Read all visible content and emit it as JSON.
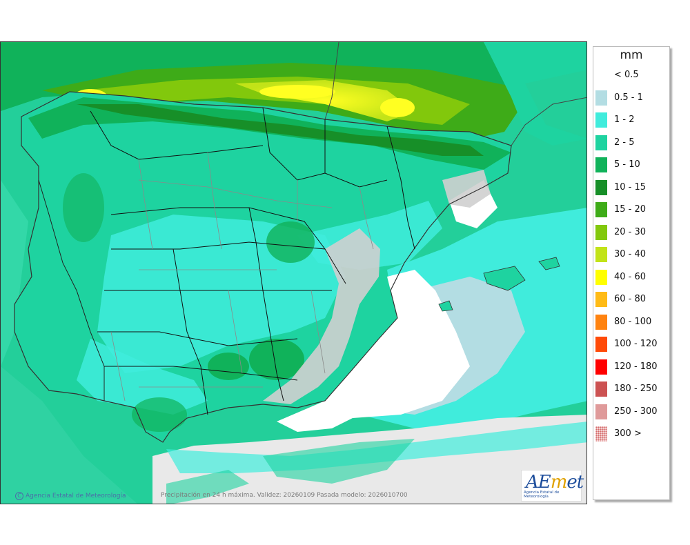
{
  "legend": {
    "unit": "mm",
    "classes": [
      {
        "label": "< 0.5",
        "color": "#ffffff"
      },
      {
        "label": "0.5 - 1",
        "color": "#b3dde3"
      },
      {
        "label": "1 - 2",
        "color": "#40ecdc"
      },
      {
        "label": "2 - 5",
        "color": "#1ed3a0"
      },
      {
        "label": "5 - 10",
        "color": "#10b25a"
      },
      {
        "label": "10 - 15",
        "color": "#178f28"
      },
      {
        "label": "15 - 20",
        "color": "#3eab18"
      },
      {
        "label": "20 - 30",
        "color": "#82c80c"
      },
      {
        "label": "30 - 40",
        "color": "#c2e318"
      },
      {
        "label": "40 - 60",
        "color": "#ffff00"
      },
      {
        "label": "60 - 80",
        "color": "#ffbb16"
      },
      {
        "label": "80 - 100",
        "color": "#ff8310"
      },
      {
        "label": "100 - 120",
        "color": "#ff4a08"
      },
      {
        "label": "120 - 180",
        "color": "#ff0000"
      },
      {
        "label": "180 - 250",
        "color": "#cc5252"
      },
      {
        "label": "250 - 300",
        "color": "#df9a9a"
      },
      {
        "label": "300 >",
        "color": "#f4d2d2",
        "pattern": "dotted"
      }
    ]
  },
  "footer": {
    "agency_credit": "Agencia Estatal de Meteorología",
    "caption": "Precipitación en 24 h máxima. Validez: 20260109 Pasada modelo: 2026010700"
  },
  "logo": {
    "name": "AEmet",
    "subtitle": "Agencia Estatal de Meteorología"
  }
}
